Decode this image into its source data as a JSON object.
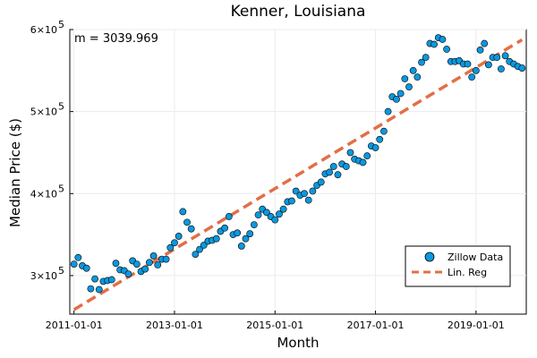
{
  "chart_data": {
    "type": "scatter",
    "title": "Kenner, Louisiana",
    "xlabel": "Month",
    "ylabel": "Median Price ($)",
    "annotation": "m = 3039.969",
    "x_ticks": [
      {
        "label": "2011-01-01",
        "month_index": 0
      },
      {
        "label": "2013-01-01",
        "month_index": 24
      },
      {
        "label": "2015-01-01",
        "month_index": 48
      },
      {
        "label": "2017-01-01",
        "month_index": 72
      },
      {
        "label": "2019-01-01",
        "month_index": 96
      }
    ],
    "y_ticks": [
      {
        "mantissa": "3×10",
        "exp": "5",
        "value": 300000
      },
      {
        "mantissa": "4×10",
        "exp": "5",
        "value": 400000
      },
      {
        "mantissa": "5×10",
        "exp": "5",
        "value": 500000
      },
      {
        "mantissa": "6×10",
        "exp": "5",
        "value": 600000
      }
    ],
    "xlim": [
      -1,
      108
    ],
    "ylim": [
      253000,
      600000
    ],
    "grid": true,
    "legend_position": "bottom-right",
    "series": [
      {
        "name": "Zillow Data",
        "kind": "scatter",
        "color": "#0b98de",
        "x": [
          0,
          1,
          2,
          3,
          4,
          5,
          6,
          7,
          8,
          9,
          10,
          11,
          12,
          13,
          14,
          15,
          16,
          17,
          18,
          19,
          20,
          21,
          22,
          23,
          24,
          25,
          26,
          27,
          28,
          29,
          30,
          31,
          32,
          33,
          34,
          35,
          36,
          37,
          38,
          39,
          40,
          41,
          42,
          43,
          44,
          45,
          46,
          47,
          48,
          49,
          50,
          51,
          52,
          53,
          54,
          55,
          56,
          57,
          58,
          59,
          60,
          61,
          62,
          63,
          64,
          65,
          66,
          67,
          68,
          69,
          70,
          71,
          72,
          73,
          74,
          75,
          76,
          77,
          78,
          79,
          80,
          81,
          82,
          83,
          84,
          85,
          86,
          87,
          88,
          89,
          90,
          91,
          92,
          93,
          94,
          95,
          96,
          97,
          98,
          99,
          100,
          101,
          102,
          103,
          104,
          105,
          106,
          107
        ],
        "y": [
          314000,
          322000,
          312000,
          309000,
          284000,
          296000,
          283000,
          293000,
          294000,
          295000,
          315000,
          307000,
          306000,
          302000,
          318000,
          314000,
          305000,
          308000,
          316000,
          324000,
          313000,
          320000,
          320000,
          334000,
          340000,
          348000,
          378000,
          365000,
          357000,
          326000,
          332000,
          337000,
          342000,
          343000,
          345000,
          354000,
          358000,
          372000,
          350000,
          352000,
          336000,
          345000,
          351000,
          362000,
          374000,
          381000,
          377000,
          372000,
          368000,
          375000,
          381000,
          390000,
          391000,
          403000,
          398000,
          400000,
          392000,
          403000,
          410000,
          414000,
          424000,
          426000,
          433000,
          423000,
          436000,
          433000,
          450000,
          442000,
          440000,
          438000,
          446000,
          458000,
          456000,
          466000,
          476000,
          500000,
          518000,
          515000,
          522000,
          540000,
          530000,
          550000,
          542000,
          560000,
          566000,
          583000,
          582000,
          590000,
          588000,
          576000,
          561000,
          561000,
          562000,
          558000,
          558000,
          542000,
          550000,
          575000,
          583000,
          557000,
          566000,
          566000,
          552000,
          568000,
          561000,
          558000,
          555000,
          553000
        ]
      },
      {
        "name": "Lin. Reg",
        "kind": "line",
        "dash": true,
        "color": "#e26f46",
        "x": [
          0,
          107
        ],
        "y": [
          258500,
          587500
        ]
      }
    ]
  }
}
